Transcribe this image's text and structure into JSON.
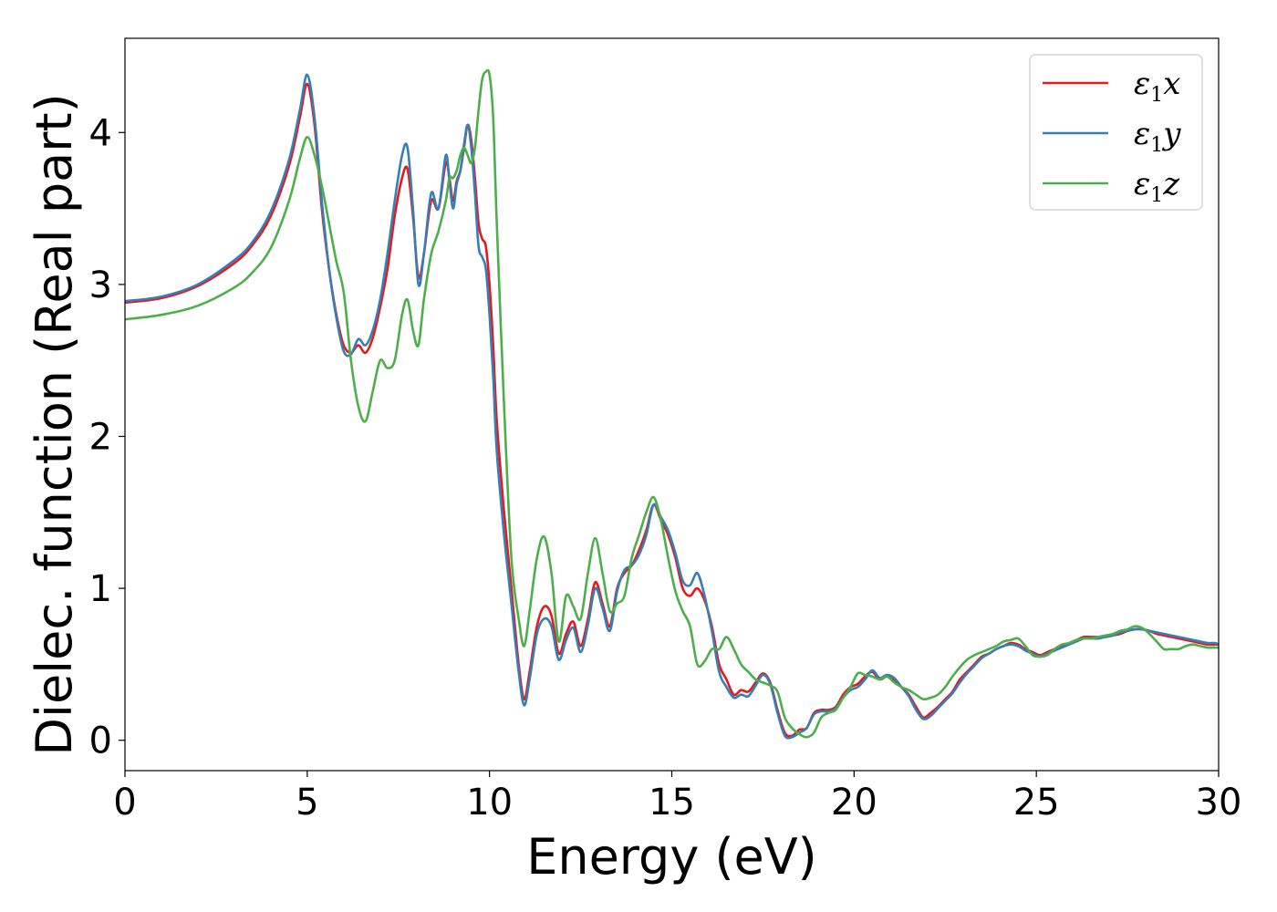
{
  "chart_data": {
    "type": "line",
    "xlabel": "Energy (eV)",
    "ylabel": "Dielec. function (Real part)",
    "xlim": [
      0,
      30
    ],
    "ylim": [
      -0.2,
      4.62
    ],
    "xticks": [
      0,
      5,
      10,
      15,
      20,
      25,
      30
    ],
    "yticks": [
      0,
      1,
      2,
      3,
      4
    ],
    "grid": false,
    "legend_position": "top-right",
    "series": [
      {
        "name": "ε1x",
        "legend": {
          "base": "ε",
          "sub": "1",
          "var": "x"
        },
        "color": "#e41a1c",
        "x": [
          0,
          1,
          2,
          3,
          3.5,
          4,
          4.5,
          4.8,
          5.0,
          5.2,
          5.4,
          5.6,
          5.8,
          6.0,
          6.2,
          6.4,
          6.6,
          6.8,
          7.0,
          7.2,
          7.4,
          7.6,
          7.75,
          7.9,
          8.05,
          8.2,
          8.4,
          8.6,
          8.8,
          8.9,
          9.0,
          9.1,
          9.2,
          9.3,
          9.4,
          9.5,
          9.6,
          9.7,
          9.8,
          9.9,
          10.0,
          10.1,
          10.2,
          10.4,
          10.6,
          10.8,
          10.95,
          11.1,
          11.3,
          11.5,
          11.7,
          11.9,
          12.1,
          12.3,
          12.5,
          12.7,
          12.9,
          13.1,
          13.3,
          13.5,
          13.7,
          13.9,
          14.1,
          14.3,
          14.5,
          14.7,
          14.9,
          15.1,
          15.3,
          15.5,
          15.7,
          15.9,
          16.1,
          16.3,
          16.5,
          16.7,
          16.9,
          17.1,
          17.3,
          17.5,
          17.7,
          17.9,
          18.1,
          18.3,
          18.5,
          18.7,
          18.9,
          19.1,
          19.3,
          19.5,
          19.7,
          19.9,
          20.1,
          20.3,
          20.5,
          20.7,
          20.9,
          21.1,
          21.3,
          21.5,
          21.7,
          21.9,
          22.1,
          22.3,
          22.5,
          22.7,
          22.9,
          23.1,
          23.3,
          23.5,
          23.7,
          23.9,
          24.1,
          24.3,
          24.5,
          24.7,
          24.9,
          25.1,
          25.3,
          25.5,
          25.7,
          25.9,
          26.1,
          26.3,
          26.5,
          26.7,
          26.9,
          27.1,
          27.3,
          27.5,
          27.7,
          27.9,
          28.1,
          28.3,
          28.5,
          28.7,
          28.9,
          29.1,
          29.3,
          29.5,
          29.7,
          29.9,
          30.0
        ],
        "y": [
          2.88,
          2.91,
          2.99,
          3.14,
          3.26,
          3.45,
          3.78,
          4.1,
          4.32,
          4.05,
          3.5,
          3.1,
          2.8,
          2.6,
          2.55,
          2.6,
          2.55,
          2.65,
          2.85,
          3.1,
          3.45,
          3.7,
          3.76,
          3.45,
          3.05,
          3.2,
          3.55,
          3.5,
          3.8,
          3.7,
          3.55,
          3.68,
          3.75,
          3.9,
          4.05,
          3.95,
          3.7,
          3.4,
          3.3,
          3.25,
          3.0,
          2.6,
          2.1,
          1.5,
          1.0,
          0.5,
          0.27,
          0.45,
          0.75,
          0.88,
          0.82,
          0.57,
          0.7,
          0.78,
          0.62,
          0.8,
          1.04,
          0.9,
          0.75,
          1.0,
          1.1,
          1.15,
          1.25,
          1.38,
          1.55,
          1.45,
          1.35,
          1.2,
          1.0,
          0.95,
          1.0,
          0.92,
          0.75,
          0.5,
          0.4,
          0.3,
          0.33,
          0.32,
          0.38,
          0.44,
          0.38,
          0.2,
          0.05,
          0.03,
          0.07,
          0.08,
          0.18,
          0.2,
          0.2,
          0.22,
          0.3,
          0.35,
          0.37,
          0.42,
          0.45,
          0.4,
          0.42,
          0.4,
          0.35,
          0.3,
          0.22,
          0.15,
          0.18,
          0.22,
          0.27,
          0.32,
          0.4,
          0.45,
          0.5,
          0.55,
          0.57,
          0.6,
          0.62,
          0.64,
          0.63,
          0.6,
          0.58,
          0.56,
          0.58,
          0.6,
          0.62,
          0.64,
          0.66,
          0.68,
          0.68,
          0.68,
          0.68,
          0.69,
          0.7,
          0.72,
          0.73,
          0.73,
          0.72,
          0.7,
          0.69,
          0.68,
          0.67,
          0.66,
          0.65,
          0.64,
          0.63,
          0.63,
          0.63
        ]
      },
      {
        "name": "ε1y",
        "legend": {
          "base": "ε",
          "sub": "1",
          "var": "y"
        },
        "color": "#377eb8",
        "x": [
          0,
          1,
          2,
          3,
          3.5,
          4,
          4.5,
          4.8,
          5.0,
          5.2,
          5.4,
          5.6,
          5.8,
          6.0,
          6.2,
          6.4,
          6.6,
          6.8,
          7.0,
          7.2,
          7.4,
          7.6,
          7.75,
          7.9,
          8.05,
          8.2,
          8.4,
          8.6,
          8.8,
          8.9,
          9.0,
          9.1,
          9.2,
          9.3,
          9.4,
          9.5,
          9.6,
          9.7,
          9.8,
          9.9,
          10.0,
          10.1,
          10.2,
          10.4,
          10.6,
          10.8,
          10.95,
          11.1,
          11.3,
          11.5,
          11.7,
          11.9,
          12.1,
          12.3,
          12.5,
          12.7,
          12.9,
          13.1,
          13.3,
          13.5,
          13.7,
          13.9,
          14.1,
          14.3,
          14.5,
          14.7,
          14.9,
          15.1,
          15.3,
          15.5,
          15.7,
          15.9,
          16.1,
          16.3,
          16.5,
          16.7,
          16.9,
          17.1,
          17.3,
          17.5,
          17.7,
          17.9,
          18.1,
          18.3,
          18.5,
          18.7,
          18.9,
          19.1,
          19.3,
          19.5,
          19.7,
          19.9,
          20.1,
          20.3,
          20.5,
          20.7,
          20.9,
          21.1,
          21.3,
          21.5,
          21.7,
          21.9,
          22.1,
          22.3,
          22.5,
          22.7,
          22.9,
          23.1,
          23.3,
          23.5,
          23.7,
          23.9,
          24.1,
          24.3,
          24.5,
          24.7,
          24.9,
          25.1,
          25.3,
          25.5,
          25.7,
          25.9,
          26.1,
          26.3,
          26.5,
          26.7,
          26.9,
          27.1,
          27.3,
          27.5,
          27.7,
          27.9,
          28.1,
          28.3,
          28.5,
          28.7,
          28.9,
          29.1,
          29.3,
          29.5,
          29.7,
          29.9,
          30.0
        ],
        "y": [
          2.89,
          2.92,
          3.0,
          3.16,
          3.28,
          3.48,
          3.82,
          4.15,
          4.38,
          4.1,
          3.55,
          3.1,
          2.78,
          2.56,
          2.54,
          2.64,
          2.6,
          2.7,
          2.9,
          3.2,
          3.55,
          3.85,
          3.9,
          3.5,
          3.0,
          3.2,
          3.6,
          3.5,
          3.85,
          3.68,
          3.5,
          3.66,
          3.75,
          3.92,
          4.05,
          3.9,
          3.6,
          3.25,
          3.18,
          3.1,
          2.8,
          2.4,
          1.9,
          1.35,
          0.9,
          0.45,
          0.23,
          0.4,
          0.7,
          0.8,
          0.75,
          0.53,
          0.66,
          0.74,
          0.58,
          0.76,
          1.0,
          0.87,
          0.72,
          0.98,
          1.12,
          1.15,
          1.22,
          1.35,
          1.55,
          1.47,
          1.38,
          1.23,
          1.05,
          1.02,
          1.1,
          0.95,
          0.72,
          0.45,
          0.35,
          0.28,
          0.3,
          0.29,
          0.36,
          0.43,
          0.37,
          0.18,
          0.03,
          0.02,
          0.05,
          0.08,
          0.17,
          0.19,
          0.19,
          0.21,
          0.28,
          0.33,
          0.35,
          0.4,
          0.46,
          0.41,
          0.43,
          0.41,
          0.35,
          0.29,
          0.2,
          0.14,
          0.16,
          0.21,
          0.26,
          0.31,
          0.38,
          0.44,
          0.49,
          0.54,
          0.57,
          0.6,
          0.62,
          0.63,
          0.62,
          0.59,
          0.57,
          0.55,
          0.57,
          0.59,
          0.61,
          0.63,
          0.65,
          0.67,
          0.67,
          0.67,
          0.68,
          0.69,
          0.71,
          0.72,
          0.73,
          0.73,
          0.72,
          0.71,
          0.7,
          0.69,
          0.68,
          0.67,
          0.66,
          0.65,
          0.64,
          0.64,
          0.63
        ]
      },
      {
        "name": "ε1z",
        "legend": {
          "base": "ε",
          "sub": "1",
          "var": "z"
        },
        "color": "#4daf4a",
        "x": [
          0,
          1,
          2,
          3,
          3.5,
          4,
          4.5,
          4.8,
          5.0,
          5.2,
          5.4,
          5.6,
          5.8,
          6.0,
          6.2,
          6.4,
          6.6,
          6.8,
          7.0,
          7.2,
          7.4,
          7.6,
          7.75,
          7.9,
          8.05,
          8.2,
          8.4,
          8.6,
          8.8,
          8.9,
          9.0,
          9.1,
          9.2,
          9.3,
          9.4,
          9.5,
          9.6,
          9.7,
          9.8,
          9.9,
          10.0,
          10.1,
          10.2,
          10.4,
          10.6,
          10.8,
          10.95,
          11.1,
          11.3,
          11.5,
          11.7,
          11.9,
          12.1,
          12.3,
          12.5,
          12.7,
          12.9,
          13.1,
          13.3,
          13.5,
          13.7,
          13.9,
          14.1,
          14.3,
          14.5,
          14.7,
          14.9,
          15.1,
          15.3,
          15.5,
          15.7,
          15.9,
          16.1,
          16.3,
          16.5,
          16.7,
          16.9,
          17.1,
          17.3,
          17.5,
          17.7,
          17.9,
          18.1,
          18.3,
          18.5,
          18.7,
          18.9,
          19.1,
          19.3,
          19.5,
          19.7,
          19.9,
          20.1,
          20.3,
          20.5,
          20.7,
          20.9,
          21.1,
          21.3,
          21.5,
          21.7,
          21.9,
          22.1,
          22.3,
          22.5,
          22.7,
          22.9,
          23.1,
          23.3,
          23.5,
          23.7,
          23.9,
          24.1,
          24.3,
          24.5,
          24.7,
          24.9,
          25.1,
          25.3,
          25.5,
          25.7,
          25.9,
          26.1,
          26.3,
          26.5,
          26.7,
          26.9,
          27.1,
          27.3,
          27.5,
          27.7,
          27.9,
          28.1,
          28.3,
          28.5,
          28.7,
          28.9,
          29.1,
          29.3,
          29.5,
          29.7,
          29.9,
          30.0
        ],
        "y": [
          2.77,
          2.8,
          2.86,
          2.98,
          3.08,
          3.24,
          3.55,
          3.83,
          3.97,
          3.85,
          3.65,
          3.4,
          3.15,
          2.95,
          2.5,
          2.2,
          2.1,
          2.3,
          2.5,
          2.45,
          2.5,
          2.8,
          2.9,
          2.7,
          2.6,
          2.9,
          3.2,
          3.35,
          3.55,
          3.7,
          3.7,
          3.75,
          3.85,
          3.9,
          3.85,
          3.8,
          3.9,
          4.15,
          4.35,
          4.4,
          4.38,
          4.1,
          3.4,
          2.2,
          1.2,
          0.8,
          0.62,
          0.85,
          1.2,
          1.34,
          1.1,
          0.65,
          0.95,
          0.88,
          0.8,
          1.1,
          1.33,
          1.1,
          0.85,
          0.9,
          0.95,
          1.2,
          1.35,
          1.5,
          1.6,
          1.45,
          1.2,
          0.98,
          0.85,
          0.75,
          0.5,
          0.52,
          0.6,
          0.6,
          0.68,
          0.6,
          0.5,
          0.45,
          0.4,
          0.38,
          0.36,
          0.32,
          0.15,
          0.08,
          0.04,
          0.02,
          0.05,
          0.15,
          0.18,
          0.2,
          0.28,
          0.35,
          0.44,
          0.43,
          0.42,
          0.4,
          0.42,
          0.38,
          0.35,
          0.33,
          0.3,
          0.27,
          0.28,
          0.3,
          0.35,
          0.42,
          0.48,
          0.53,
          0.56,
          0.58,
          0.6,
          0.62,
          0.65,
          0.66,
          0.67,
          0.62,
          0.56,
          0.55,
          0.56,
          0.6,
          0.63,
          0.64,
          0.66,
          0.67,
          0.67,
          0.68,
          0.69,
          0.7,
          0.72,
          0.73,
          0.75,
          0.74,
          0.7,
          0.65,
          0.6,
          0.6,
          0.6,
          0.62,
          0.63,
          0.62,
          0.61,
          0.61,
          0.61
        ]
      }
    ]
  }
}
